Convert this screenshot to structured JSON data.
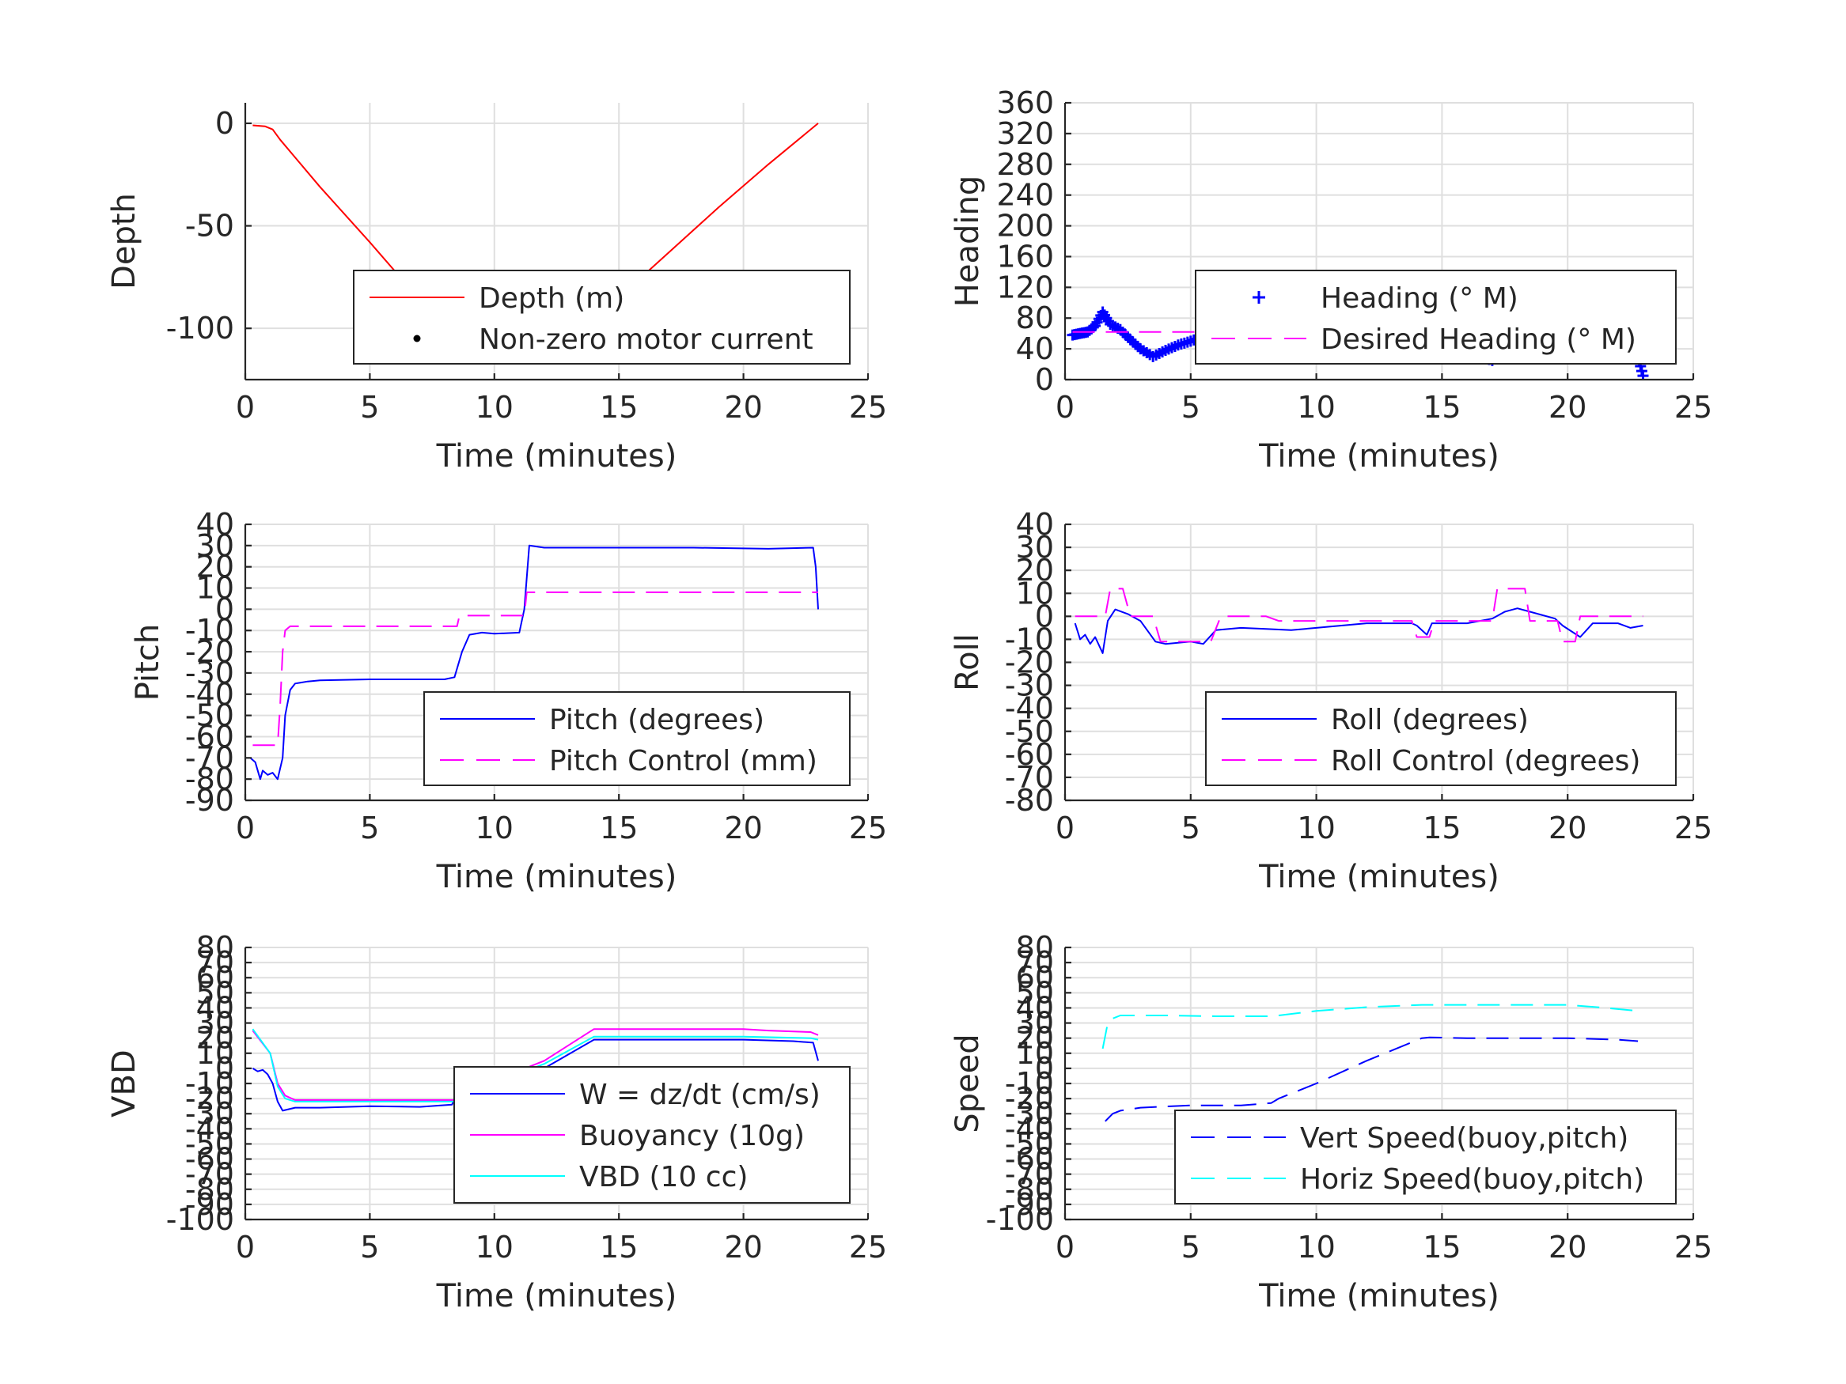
{
  "chart_data": [
    {
      "id": "depth",
      "type": "line",
      "xlabel": "Time (minutes)",
      "ylabel": "Depth",
      "xlim": [
        0,
        25
      ],
      "ylim": [
        -125,
        10
      ],
      "xticks": [
        0,
        5,
        10,
        15,
        20,
        25
      ],
      "yticks": [
        0,
        -50,
        -100
      ],
      "grid": true,
      "legend_placement": "bottom-right",
      "series": [
        {
          "name": "Depth (m)",
          "style": "solid",
          "marker": "none",
          "color": "#ff0000",
          "x": [
            0.3,
            0.8,
            1.1,
            1.4,
            3,
            5,
            7,
            8.5,
            9.5,
            11,
            12,
            13,
            13.8,
            15,
            17,
            19,
            21,
            23
          ],
          "y": [
            -1,
            -1.5,
            -3,
            -8,
            -31,
            -58,
            -86,
            -106,
            -110,
            -113,
            -110,
            -104,
            -98,
            -85,
            -63,
            -41,
            -20,
            0
          ]
        },
        {
          "name": "Non-zero motor current",
          "style": "none",
          "marker": "dot",
          "color": "#000000",
          "x": [
            8.5,
            9,
            9.5,
            10,
            10.5,
            11,
            11.5,
            12,
            12.5,
            13,
            13.5,
            13.8
          ],
          "y": [
            -106,
            -108.5,
            -110.5,
            -112,
            -113.5,
            -114.5,
            -113.5,
            -112,
            -110,
            -107,
            -103,
            -100
          ]
        }
      ]
    },
    {
      "id": "heading",
      "type": "line",
      "xlabel": "Time (minutes)",
      "ylabel": "Heading",
      "xlim": [
        0,
        25
      ],
      "ylim": [
        0,
        360
      ],
      "xticks": [
        0,
        5,
        10,
        15,
        20,
        25
      ],
      "yticks": [
        0,
        40,
        80,
        120,
        160,
        200,
        240,
        280,
        320,
        360
      ],
      "grid": true,
      "legend_placement": "bottom-right",
      "series": [
        {
          "name": "Heading (° M)",
          "style": "none",
          "marker": "plus",
          "color": "#0000ff",
          "x": [
            0.3,
            0.6,
            0.9,
            1.2,
            1.5,
            1.8,
            2.2,
            2.6,
            3.0,
            3.5,
            4.0,
            4.5,
            5.0,
            5.5,
            6.0,
            6.5,
            7.0,
            7.5,
            8.0,
            8.5,
            9.0,
            9.5,
            10.0,
            10.5,
            11.0,
            11.5,
            12.0,
            12.5,
            13.0,
            13.5,
            14.0,
            14.5,
            15.0,
            15.5,
            16.0,
            16.5,
            17.0,
            17.5,
            18.0,
            18.5,
            19.0,
            19.5,
            20.0,
            20.5,
            21.0,
            21.5,
            22.0,
            22.5,
            22.8,
            23.0
          ],
          "y": [
            58,
            60,
            62,
            70,
            88,
            72,
            65,
            52,
            40,
            30,
            38,
            45,
            50,
            56,
            62,
            68,
            74,
            76,
            72,
            68,
            72,
            82,
            88,
            92,
            95,
            96,
            95,
            96,
            93,
            90,
            82,
            70,
            60,
            48,
            38,
            30,
            25,
            32,
            50,
            70,
            80,
            90,
            70,
            62,
            60,
            58,
            52,
            48,
            30,
            5
          ]
        },
        {
          "name": "Desired Heading (° M)",
          "style": "dash",
          "marker": "none",
          "color": "#ff00ff",
          "x": [
            0.3,
            23
          ],
          "y": [
            62,
            62
          ]
        }
      ]
    },
    {
      "id": "pitch",
      "type": "line",
      "xlabel": "Time (minutes)",
      "ylabel": "Pitch",
      "xlim": [
        0,
        25
      ],
      "ylim": [
        -90,
        40
      ],
      "xticks": [
        0,
        5,
        10,
        15,
        20,
        25
      ],
      "yticks": [
        40,
        30,
        20,
        10,
        0,
        -10,
        -20,
        -30,
        -40,
        -50,
        -60,
        -70,
        -80,
        -90
      ],
      "grid": true,
      "legend_placement": "bottom-right",
      "series": [
        {
          "name": "Pitch (degrees)",
          "style": "solid",
          "marker": "none",
          "color": "#0000ff",
          "x": [
            0.2,
            0.4,
            0.6,
            0.7,
            0.9,
            1.1,
            1.3,
            1.5,
            1.6,
            1.8,
            2.0,
            2.5,
            3,
            5,
            7,
            8,
            8.4,
            8.7,
            9.0,
            9.5,
            10,
            11,
            11.2,
            11.4,
            12,
            15,
            18,
            21,
            22.8,
            22.9,
            23.0
          ],
          "y": [
            -70,
            -72,
            -80,
            -76,
            -78,
            -77,
            -80,
            -70,
            -50,
            -38,
            -35,
            -34,
            -33.5,
            -33,
            -33,
            -33,
            -32,
            -20,
            -12,
            -11,
            -11.5,
            -11,
            0,
            30,
            29,
            29,
            29,
            28.5,
            29,
            20,
            0
          ]
        },
        {
          "name": "Pitch Control (mm)",
          "style": "dash",
          "marker": "none",
          "color": "#ff00ff",
          "x": [
            0.3,
            1.3,
            1.4,
            1.5,
            1.6,
            1.8,
            8.5,
            8.6,
            11.2,
            11.3,
            23
          ],
          "y": [
            -64,
            -64,
            -45,
            -20,
            -10,
            -8,
            -8,
            -3,
            -3,
            8,
            8
          ]
        }
      ]
    },
    {
      "id": "roll",
      "type": "line",
      "xlabel": "Time (minutes)",
      "ylabel": "Roll",
      "xlim": [
        0,
        25
      ],
      "ylim": [
        -80,
        40
      ],
      "xticks": [
        0,
        5,
        10,
        15,
        20,
        25
      ],
      "yticks": [
        40,
        30,
        20,
        10,
        0,
        -10,
        -20,
        -30,
        -40,
        -50,
        -60,
        -70,
        -80
      ],
      "grid": true,
      "legend_placement": "bottom-right",
      "series": [
        {
          "name": "Roll (degrees)",
          "style": "solid",
          "marker": "none",
          "color": "#0000ff",
          "x": [
            0.4,
            0.6,
            0.8,
            1.0,
            1.2,
            1.5,
            1.7,
            2.0,
            2.5,
            3.0,
            3.6,
            4,
            5,
            5.5,
            6,
            7,
            8,
            9,
            10,
            12,
            13.8,
            14.0,
            14.4,
            14.6,
            16,
            17,
            17.5,
            18,
            18.5,
            19.5,
            19.8,
            20.5,
            21,
            22,
            22.5,
            23
          ],
          "y": [
            -3,
            -10,
            -8,
            -12,
            -9,
            -16,
            -2,
            3,
            1,
            -2,
            -11,
            -12,
            -11,
            -12,
            -6,
            -5,
            -5.5,
            -6,
            -5,
            -3,
            -3,
            -4,
            -8,
            -3,
            -3,
            -1,
            2,
            3.5,
            2,
            -1,
            -4,
            -9,
            -3,
            -3,
            -5,
            -4
          ]
        },
        {
          "name": "Roll Control (degrees)",
          "style": "dash",
          "marker": "none",
          "color": "#ff00ff",
          "x": [
            0.4,
            1.6,
            1.8,
            2.3,
            2.6,
            3.5,
            3.8,
            5.8,
            6.2,
            8,
            8.5,
            13.8,
            14.0,
            14.5,
            14.7,
            17,
            17.2,
            18.3,
            18.5,
            19.6,
            19.8,
            20.3,
            20.5,
            23
          ],
          "y": [
            0,
            0,
            12,
            12,
            0,
            0,
            -11,
            -11,
            0,
            0,
            -2,
            -2,
            -9,
            -9,
            -2,
            -2,
            12,
            12,
            -2,
            -2,
            -11,
            -11,
            0,
            0
          ]
        }
      ]
    },
    {
      "id": "vbd",
      "type": "line",
      "xlabel": "Time (minutes)",
      "ylabel": "VBD",
      "xlim": [
        0,
        25
      ],
      "ylim": [
        -100,
        80
      ],
      "xticks": [
        0,
        5,
        10,
        15,
        20,
        25
      ],
      "yticks": [
        80,
        70,
        60,
        50,
        40,
        30,
        20,
        10,
        0,
        -10,
        -20,
        -30,
        -40,
        -50,
        -60,
        -70,
        -80,
        -90,
        -100
      ],
      "grid": true,
      "legend_placement": "bottom-right",
      "series": [
        {
          "name": "W = dz/dt (cm/s)",
          "style": "solid",
          "marker": "none",
          "color": "#0000ff",
          "x": [
            0.3,
            0.5,
            0.7,
            0.9,
            1.1,
            1.3,
            1.5,
            2,
            3,
            5,
            7,
            8.3,
            8.5,
            9,
            10,
            12,
            14,
            16,
            18,
            20,
            22,
            22.8,
            23.0
          ],
          "y": [
            0,
            -2,
            -1,
            -4,
            -10,
            -22,
            -28,
            -26,
            -26,
            -25,
            -25.5,
            -24,
            -15,
            -13,
            -10,
            0,
            19,
            19,
            19,
            19,
            18,
            17,
            5
          ]
        },
        {
          "name": "Buoyancy (10g)",
          "style": "solid",
          "marker": "none",
          "color": "#ff00ff",
          "x": [
            0.3,
            1.0,
            1.3,
            1.6,
            2,
            8.4,
            8.6,
            10,
            12,
            14,
            20,
            21,
            22.7,
            23
          ],
          "y": [
            25,
            10,
            -10,
            -18,
            -21,
            -21,
            -12,
            -8,
            5,
            26,
            26,
            25,
            24,
            22
          ]
        },
        {
          "name": "VBD (10 cc)",
          "style": "solid",
          "marker": "none",
          "color": "#00ffff",
          "x": [
            0.3,
            1.0,
            1.3,
            1.6,
            2,
            8.4,
            8.6,
            10,
            12,
            14,
            20,
            22.7,
            23
          ],
          "y": [
            26,
            10,
            -12,
            -20,
            -22,
            -22,
            -15,
            -10,
            3,
            21,
            21,
            20,
            19
          ]
        }
      ]
    },
    {
      "id": "speed",
      "type": "line",
      "xlabel": "Time (minutes)",
      "ylabel": "Speed",
      "xlim": [
        0,
        25
      ],
      "ylim": [
        -100,
        80
      ],
      "xticks": [
        0,
        5,
        10,
        15,
        20,
        25
      ],
      "yticks": [
        80,
        70,
        60,
        50,
        40,
        30,
        20,
        10,
        0,
        -10,
        -20,
        -30,
        -40,
        -50,
        -60,
        -70,
        -80,
        -90,
        -100
      ],
      "grid": true,
      "legend_placement": "bottom-right",
      "series": [
        {
          "name": "Vert Speed(buoy,pitch)",
          "style": "dash",
          "marker": "none",
          "color": "#0000ff",
          "x": [
            1.6,
            1.9,
            2.2,
            3,
            5,
            7,
            8.2,
            8.5,
            10,
            12,
            14.2,
            14.5,
            16,
            18,
            20,
            22,
            22.8
          ],
          "y": [
            -35,
            -30,
            -28,
            -26,
            -24.5,
            -24.5,
            -23,
            -20,
            -10,
            5,
            20,
            20.5,
            20,
            20,
            20,
            19,
            18
          ]
        },
        {
          "name": "Horiz Speed(buoy,pitch)",
          "style": "dash",
          "marker": "none",
          "color": "#00ffff",
          "x": [
            1.5,
            1.7,
            1.9,
            2.2,
            4,
            6,
            8.2,
            8.5,
            10,
            12,
            14.2,
            16,
            18,
            20,
            21.5,
            22.8
          ],
          "y": [
            13,
            30,
            33,
            35,
            35,
            34.5,
            34.5,
            35,
            38,
            40.5,
            42,
            42,
            42,
            42,
            40,
            38
          ]
        }
      ]
    }
  ]
}
